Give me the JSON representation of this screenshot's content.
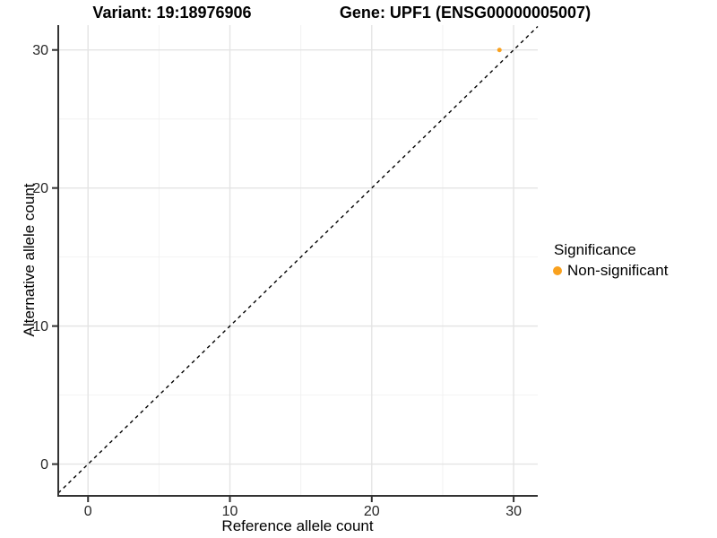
{
  "titles": {
    "variant": "Variant: 19:18976906",
    "gene": "Gene: UPF1 (ENSG00000005007)"
  },
  "chart_data": {
    "type": "scatter",
    "title_left": "Variant: 19:18976906",
    "title_right": "Gene: UPF1 (ENSG00000005007)",
    "xlabel": "Reference allele count",
    "ylabel": "Alternative allele count",
    "xlim": [
      -2.1,
      31.7
    ],
    "ylim": [
      -2.3,
      31.8
    ],
    "x_ticks": [
      0,
      10,
      20,
      30
    ],
    "y_ticks": [
      0,
      10,
      20,
      30
    ],
    "x_minor_ticks": [
      5,
      15,
      25
    ],
    "y_minor_ticks": [
      5,
      15,
      25
    ],
    "grid": true,
    "identity_line": {
      "type": "abline",
      "slope": 1,
      "intercept": 0,
      "style": "dashed",
      "color": "#000000"
    },
    "series": [
      {
        "name": "Non-significant",
        "color": "#F9A11E",
        "points": [
          {
            "x": 29,
            "y": 30
          }
        ]
      }
    ],
    "legend": {
      "title": "Significance",
      "position": "right",
      "items": [
        {
          "label": "Non-significant",
          "color": "#F9A11E"
        }
      ]
    }
  },
  "colors": {
    "accent": "#F9A11E",
    "axis_line": "#333333",
    "grid_major": "#E4E4E4",
    "grid_minor": "#F2F2F2",
    "tick_label": "#262626"
  }
}
